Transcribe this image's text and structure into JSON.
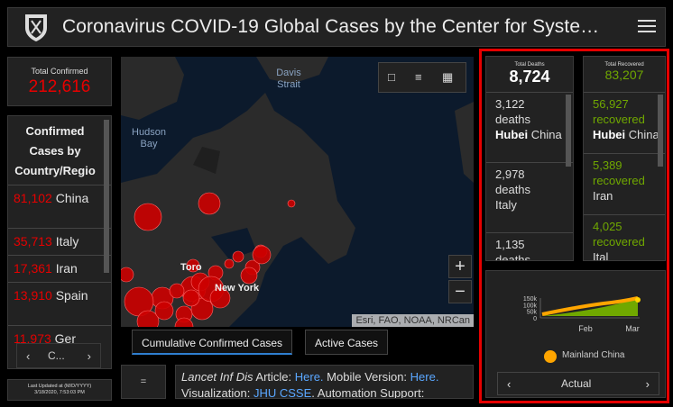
{
  "header": {
    "title": "Coronavirus COVID-19 Global Cases by the Center for Syste…"
  },
  "total_confirmed": {
    "label": "Total Confirmed",
    "value": "212,616"
  },
  "country_list": {
    "heading": "Confirmed Cases by Country/Regio",
    "rows": [
      {
        "num": "81,102",
        "name": "China"
      },
      {
        "num": "35,713",
        "name": "Italy"
      },
      {
        "num": "17,361",
        "name": "Iran"
      },
      {
        "num": "13,910",
        "name": "Spain"
      },
      {
        "num": "11,973",
        "name": "Ger"
      }
    ],
    "pager_label": "C..."
  },
  "last_updated": {
    "label": "Last Updated at (M/D/YYYY)",
    "value": "3/18/2020, 7:53:03 PM"
  },
  "map": {
    "labels": {
      "davis": "Davis Strait",
      "hudson": "Hudson Bay",
      "toronto": "Toro",
      "newyork": "New York"
    },
    "attribution": "Esri, FAO, NOAA, NRCan",
    "zoom_in": "+",
    "zoom_out": "−"
  },
  "tabs": [
    "Cumulative Confirmed Cases",
    "Active Cases"
  ],
  "info": {
    "button": "=",
    "article_prefix": "Lancet Inf Dis",
    "article_text": " Article: ",
    "here1": "Here.",
    "mobile": " Mobile Version: ",
    "here2": "Here.",
    "viz": "Visualization: ",
    "jhu": "JHU CSSE",
    "auto": ". Automation Support:"
  },
  "deaths": {
    "label": "Total Deaths",
    "value": "8,724",
    "rows": [
      {
        "count": "3,122 deaths",
        "place": "Hubei",
        "country": "China"
      },
      {
        "count": "2,978 deaths",
        "place": "",
        "country": "Italy"
      },
      {
        "count": "1,135 deaths",
        "place": "",
        "country": ""
      }
    ]
  },
  "recovered": {
    "label": "Total Recovered",
    "value": "83,207",
    "rows": [
      {
        "count": "56,927",
        "word": "recovered",
        "place": "Hubei",
        "country": "China"
      },
      {
        "count": "5,389",
        "word": "recovered",
        "place": "",
        "country": "Iran"
      },
      {
        "count": "4,025",
        "word": "recovered",
        "place": "",
        "country": "Ital"
      }
    ]
  },
  "chart_panel": {
    "legend": "Mainland China",
    "pager_label": "Actual"
  },
  "chart_data": {
    "type": "line",
    "title": "",
    "x_tick_labels": [
      "Feb",
      "Mar"
    ],
    "y_tick_labels": [
      "150k",
      "100k",
      "50k",
      "0"
    ],
    "ylim": [
      0,
      150000
    ],
    "series": [
      {
        "name": "Mainland China",
        "color": "#ffa500"
      }
    ]
  },
  "colors": {
    "confirmed": "#e60000",
    "recovered": "#70a800",
    "background": "#000000",
    "panel": "#222222"
  }
}
